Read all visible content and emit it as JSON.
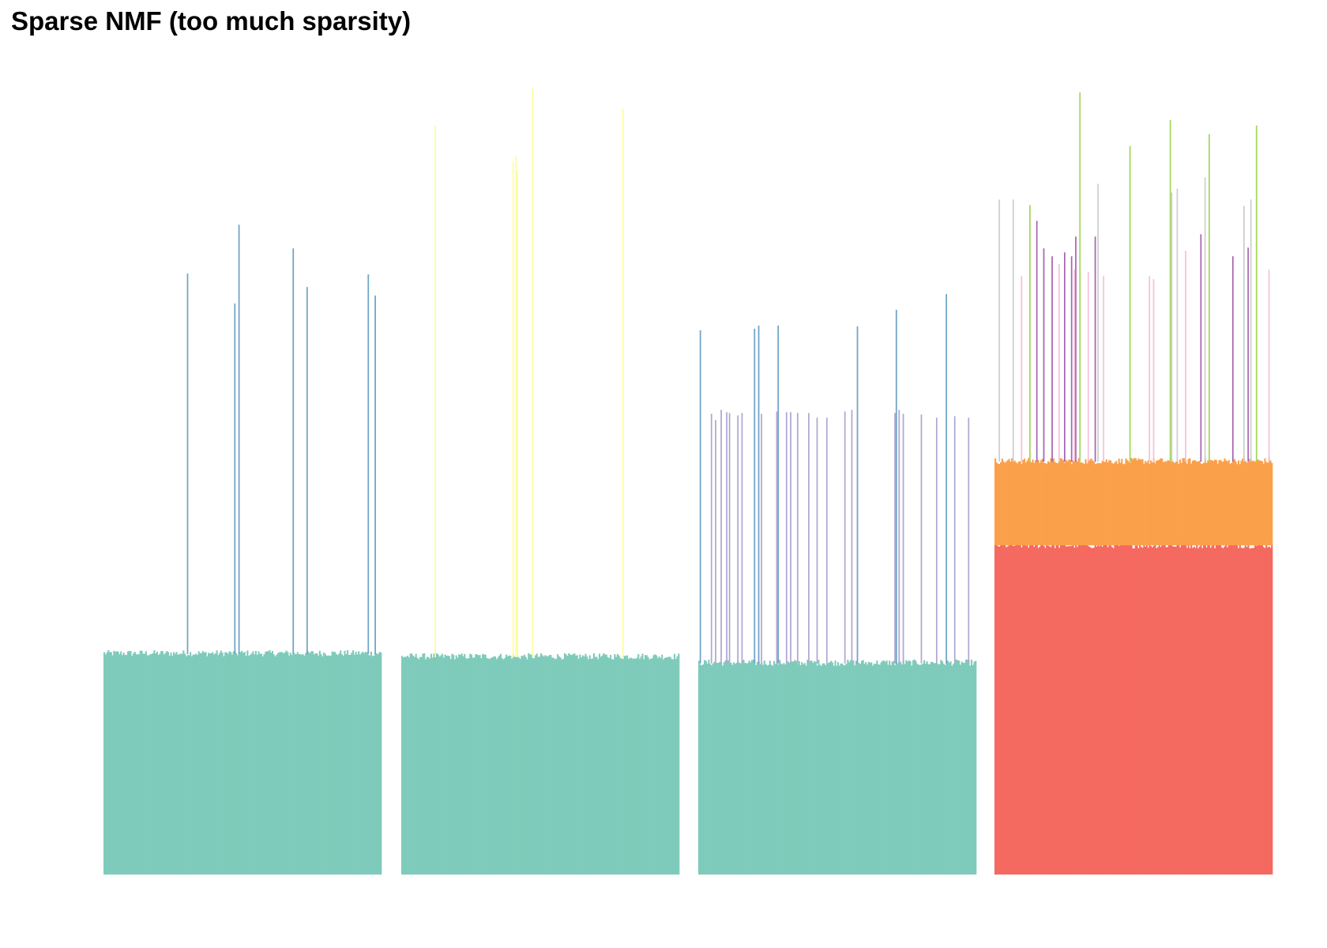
{
  "title": "Sparse NMF (too much sparsity)",
  "chart_data": {
    "type": "bar",
    "stacked": true,
    "title": "Sparse NMF (too much sparsity)",
    "xlabel": "",
    "ylabel": "",
    "axes_visible": false,
    "grid": false,
    "legend": "none",
    "ylim": [
      0,
      1
    ],
    "panel_count": 4,
    "bars_per_panel": 200,
    "colors": {
      "teal": "#7fcbbb",
      "blue": "#70a3c8",
      "yellow": "#fefe9c",
      "lavender": "#b0a8d2",
      "red": "#f46960",
      "orange": "#fba04a",
      "gray": "#cfcfcf",
      "purple": "#a967b1",
      "pink": "#f6c1db",
      "green": "#a4d75b"
    },
    "panels": [
      {
        "base": {
          "color": "teal",
          "value": 0.281
        },
        "spikes": [
          {
            "index": 60,
            "color": "blue",
            "value": 0.763
          },
          {
            "index": 94,
            "color": "blue",
            "value": 0.725
          },
          {
            "index": 97,
            "color": "blue",
            "value": 0.825
          },
          {
            "index": 136,
            "color": "blue",
            "value": 0.795
          },
          {
            "index": 146,
            "color": "blue",
            "value": 0.746
          },
          {
            "index": 190,
            "color": "blue",
            "value": 0.762
          },
          {
            "index": 195,
            "color": "blue",
            "value": 0.735
          }
        ]
      },
      {
        "base": {
          "color": "teal",
          "value": 0.277
        },
        "spikes": [
          {
            "index": 24,
            "color": "yellow",
            "value": 0.951
          },
          {
            "index": 80,
            "color": "yellow",
            "value": 0.906
          },
          {
            "index": 82,
            "color": "yellow",
            "value": 0.912
          },
          {
            "index": 83,
            "color": "yellow",
            "value": 0.894
          },
          {
            "index": 94,
            "color": "yellow",
            "value": 0.998
          },
          {
            "index": 159,
            "color": "yellow",
            "value": 0.972
          }
        ]
      },
      {
        "base": {
          "color": "teal",
          "value": 0.269
        },
        "spikes": [
          {
            "index": 1,
            "color": "blue",
            "value": 0.691
          },
          {
            "index": 9,
            "color": "lavender",
            "value": 0.585
          },
          {
            "index": 12,
            "color": "lavender",
            "value": 0.577
          },
          {
            "index": 16,
            "color": "lavender",
            "value": 0.59
          },
          {
            "index": 20,
            "color": "lavender",
            "value": 0.587
          },
          {
            "index": 22,
            "color": "lavender",
            "value": 0.586
          },
          {
            "index": 28,
            "color": "lavender",
            "value": 0.583
          },
          {
            "index": 31,
            "color": "lavender",
            "value": 0.586
          },
          {
            "index": 40,
            "color": "blue",
            "value": 0.693
          },
          {
            "index": 43,
            "color": "blue",
            "value": 0.697
          },
          {
            "index": 45,
            "color": "lavender",
            "value": 0.585
          },
          {
            "index": 57,
            "color": "blue",
            "value": 0.697
          },
          {
            "index": 56,
            "color": "lavender",
            "value": 0.588
          },
          {
            "index": 63,
            "color": "lavender",
            "value": 0.587
          },
          {
            "index": 66,
            "color": "lavender",
            "value": 0.587
          },
          {
            "index": 71,
            "color": "lavender",
            "value": 0.586
          },
          {
            "index": 79,
            "color": "lavender",
            "value": 0.586
          },
          {
            "index": 85,
            "color": "lavender",
            "value": 0.58
          },
          {
            "index": 92,
            "color": "lavender",
            "value": 0.58
          },
          {
            "index": 105,
            "color": "lavender",
            "value": 0.588
          },
          {
            "index": 110,
            "color": "lavender",
            "value": 0.59
          },
          {
            "index": 114,
            "color": "blue",
            "value": 0.696
          },
          {
            "index": 141,
            "color": "lavender",
            "value": 0.586
          },
          {
            "index": 144,
            "color": "lavender",
            "value": 0.59
          },
          {
            "index": 147,
            "color": "lavender",
            "value": 0.585
          },
          {
            "index": 142,
            "color": "blue",
            "value": 0.717
          },
          {
            "index": 160,
            "color": "lavender",
            "value": 0.584
          },
          {
            "index": 171,
            "color": "lavender",
            "value": 0.58
          },
          {
            "index": 178,
            "color": "blue",
            "value": 0.737
          },
          {
            "index": 184,
            "color": "lavender",
            "value": 0.582
          },
          {
            "index": 194,
            "color": "lavender",
            "value": 0.58
          }
        ]
      },
      {
        "base": {
          "color": "red",
          "value": 0.418
        },
        "mid": {
          "color": "orange",
          "value": 0.525
        },
        "spikes": [
          {
            "index": 3,
            "color": "gray",
            "value": 0.857
          },
          {
            "index": 13,
            "color": "gray",
            "value": 0.857
          },
          {
            "index": 19,
            "color": "pink",
            "value": 0.76
          },
          {
            "index": 25,
            "color": "green",
            "value": 0.85
          },
          {
            "index": 30,
            "color": "purple",
            "value": 0.83
          },
          {
            "index": 35,
            "color": "purple",
            "value": 0.795
          },
          {
            "index": 41,
            "color": "purple",
            "value": 0.785
          },
          {
            "index": 46,
            "color": "pink",
            "value": 0.775
          },
          {
            "index": 50,
            "color": "purple",
            "value": 0.79
          },
          {
            "index": 55,
            "color": "purple",
            "value": 0.785
          },
          {
            "index": 58,
            "color": "purple",
            "value": 0.81
          },
          {
            "index": 57,
            "color": "pink",
            "value": 0.768
          },
          {
            "index": 61,
            "color": "green",
            "value": 0.993
          },
          {
            "index": 67,
            "color": "pink",
            "value": 0.765
          },
          {
            "index": 72,
            "color": "purple",
            "value": 0.81
          },
          {
            "index": 74,
            "color": "gray",
            "value": 0.877
          },
          {
            "index": 78,
            "color": "pink",
            "value": 0.76
          },
          {
            "index": 97,
            "color": "green",
            "value": 0.925
          },
          {
            "index": 111,
            "color": "pink",
            "value": 0.76
          },
          {
            "index": 114,
            "color": "pink",
            "value": 0.756
          },
          {
            "index": 126,
            "color": "green",
            "value": 0.958
          },
          {
            "index": 127,
            "color": "gray",
            "value": 0.866
          },
          {
            "index": 131,
            "color": "gray",
            "value": 0.871
          },
          {
            "index": 137,
            "color": "pink",
            "value": 0.792
          },
          {
            "index": 148,
            "color": "purple",
            "value": 0.813
          },
          {
            "index": 151,
            "color": "gray",
            "value": 0.885
          },
          {
            "index": 154,
            "color": "green",
            "value": 0.94
          },
          {
            "index": 171,
            "color": "purple",
            "value": 0.785
          },
          {
            "index": 179,
            "color": "gray",
            "value": 0.849
          },
          {
            "index": 182,
            "color": "purple",
            "value": 0.796
          },
          {
            "index": 184,
            "color": "gray",
            "value": 0.857
          },
          {
            "index": 188,
            "color": "green",
            "value": 0.951
          },
          {
            "index": 197,
            "color": "pink",
            "value": 0.768
          }
        ]
      }
    ]
  }
}
